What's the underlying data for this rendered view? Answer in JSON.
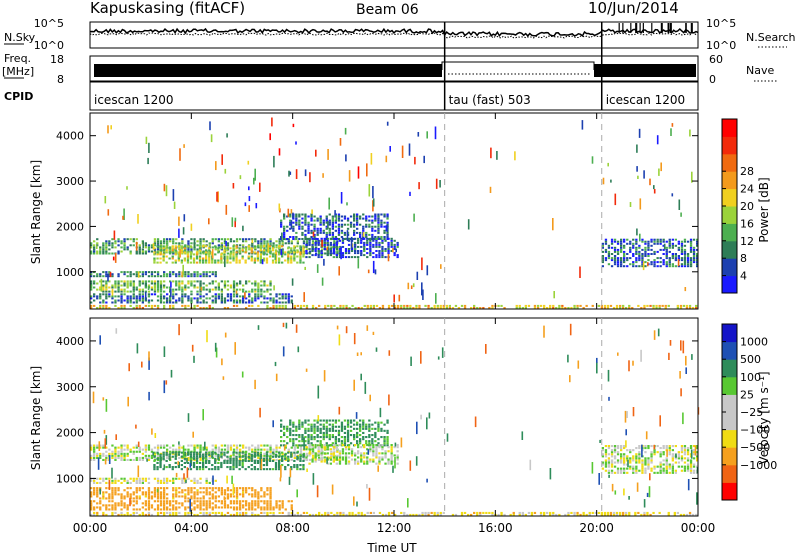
{
  "header": {
    "station": "Kapuskasing (fitACF)",
    "beam": "Beam 06",
    "date": "10/Jun/2014"
  },
  "noise_panel": {
    "left_label": "N.Sky",
    "right_label": "N.Search",
    "ticks": [
      "10^5",
      "10^0"
    ]
  },
  "freq_panel": {
    "left_label": "Freq.",
    "left_unit": "[MHz]",
    "left_ticks": [
      "18",
      "8"
    ],
    "right_label": "Nave",
    "right_ticks": [
      "60",
      "0"
    ]
  },
  "cpid_panel": {
    "label": "CPID",
    "segments": [
      {
        "name": "icescan 1200",
        "start_h": 0,
        "end_h": 14
      },
      {
        "name": "tau (fast) 503",
        "start_h": 14,
        "end_h": 20.2
      },
      {
        "name": "icescan 1200",
        "start_h": 20.2,
        "end_h": 24
      }
    ]
  },
  "chart_data": [
    {
      "type": "heatmap",
      "title": "",
      "xlabel": "Time UT",
      "ylabel": "Slant Range [km]",
      "x_ticks": [
        "00:00",
        "04:00",
        "08:00",
        "12:00",
        "16:00",
        "20:00",
        "00:00"
      ],
      "xlim_hours": [
        0,
        24
      ],
      "ylim_km": [
        180,
        4500
      ],
      "y_ticks": [
        1000,
        2000,
        3000,
        4000
      ],
      "colorbar": {
        "label": "Power [dB]",
        "ticks": [
          "4",
          "8",
          "12",
          "16",
          "20",
          "24",
          "28"
        ],
        "colors": [
          "#1a1aff",
          "#1c40b0",
          "#2e7d57",
          "#4caf50",
          "#9bd33a",
          "#f0d020",
          "#f39a1c",
          "#f06a10",
          "#f22a0a",
          "#ff0000"
        ]
      },
      "bands": [
        {
          "start_h": 0.0,
          "end_h": 9.8,
          "r0": 1380,
          "r1": 1720,
          "value": 10
        },
        {
          "start_h": 2.5,
          "end_h": 8.5,
          "r0": 1180,
          "r1": 1560,
          "value": 15
        },
        {
          "start_h": 0.0,
          "end_h": 5.0,
          "r0": 880,
          "r1": 1010,
          "value": 8
        },
        {
          "start_h": 0.0,
          "end_h": 7.2,
          "r0": 540,
          "r1": 800,
          "value": 12
        },
        {
          "start_h": 0.0,
          "end_h": 8.0,
          "r0": 300,
          "r1": 520,
          "value": 7
        },
        {
          "start_h": 7.5,
          "end_h": 11.8,
          "r0": 1700,
          "r1": 2250,
          "value": 6
        },
        {
          "start_h": 8.5,
          "end_h": 12.2,
          "r0": 1300,
          "r1": 1750,
          "value": 5
        },
        {
          "start_h": 20.2,
          "end_h": 24.0,
          "r0": 1100,
          "r1": 1700,
          "value": 6
        },
        {
          "start_h": 0.0,
          "end_h": 24.0,
          "r0": 180,
          "r1": 240,
          "value": 18
        }
      ]
    },
    {
      "type": "heatmap",
      "title": "",
      "xlabel": "Time UT",
      "ylabel": "Slant Range [km]",
      "x_ticks": [
        "00:00",
        "04:00",
        "08:00",
        "12:00",
        "16:00",
        "20:00",
        "00:00"
      ],
      "xlim_hours": [
        0,
        24
      ],
      "ylim_km": [
        180,
        4500
      ],
      "y_ticks": [
        1000,
        2000,
        3000,
        4000
      ],
      "colorbar": {
        "label": "Velocity [m s⁻¹]",
        "ticks": [
          "1000",
          "500",
          "100",
          "25",
          "−25",
          "−100",
          "−500",
          "−1000"
        ],
        "colors": [
          "#1414c8",
          "#1e50b4",
          "#2e8c5a",
          "#58c832",
          "#c8c8c8",
          "#c8c8c8",
          "#f0dc14",
          "#f5a01e",
          "#f06414",
          "#ff0000"
        ]
      },
      "bands": [
        {
          "start_h": 0.0,
          "end_h": 9.8,
          "r0": 1380,
          "r1": 1720,
          "value": 0
        },
        {
          "start_h": 2.5,
          "end_h": 8.5,
          "r0": 1180,
          "r1": 1560,
          "value": 150
        },
        {
          "start_h": 0.0,
          "end_h": 5.0,
          "r0": 880,
          "r1": 1010,
          "value": -20
        },
        {
          "start_h": 0.0,
          "end_h": 7.2,
          "r0": 540,
          "r1": 800,
          "value": -150
        },
        {
          "start_h": 0.0,
          "end_h": 8.0,
          "r0": 300,
          "r1": 520,
          "value": -300
        },
        {
          "start_h": 7.5,
          "end_h": 11.8,
          "r0": 1700,
          "r1": 2250,
          "value": 120
        },
        {
          "start_h": 8.5,
          "end_h": 12.2,
          "r0": 1300,
          "r1": 1750,
          "value": 10
        },
        {
          "start_h": 20.2,
          "end_h": 24.0,
          "r0": 1100,
          "r1": 1700,
          "value": 5
        },
        {
          "start_h": 0.0,
          "end_h": 24.0,
          "r0": 180,
          "r1": 240,
          "value": -50
        }
      ]
    }
  ]
}
